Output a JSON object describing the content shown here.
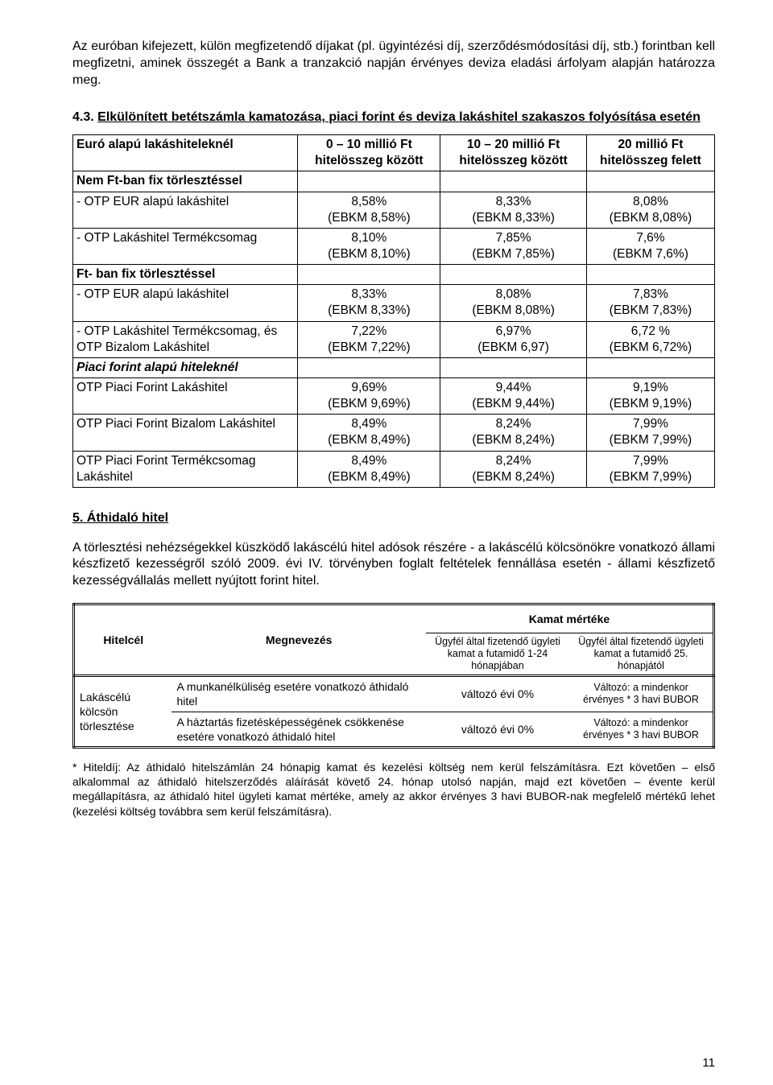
{
  "intro": "Az euróban kifejezett, külön megfizetendő díjakat (pl. ügyintézési díj, szerződésmódosítási díj, stb.) forintban kell megfizetni, aminek összegét a Bank a tranzakció napján érvényes deviza eladási árfolyam alapján határozza meg.",
  "sec43": {
    "num": "4.3.",
    "title": "Elkülönített betétszámla kamatozása, piaci forint és deviza lakáshitel szakaszos folyósítása esetén"
  },
  "table1": {
    "head_row1_c0": "Euró alapú lakáshiteleknél",
    "head_cols": [
      "0 – 10 millió Ft hitelösszeg között",
      "10 – 20 millió Ft hitelösszeg között",
      "20 millió Ft hitelösszeg felett"
    ],
    "rows": [
      {
        "label": "Nem Ft-ban fix törlesztéssel",
        "bold": true,
        "vals": [
          "",
          "",
          ""
        ]
      },
      {
        "label": " - OTP EUR alapú lakáshitel",
        "vals": [
          "8,58%\n(EBKM 8,58%)",
          "8,33%\n(EBKM 8,33%)",
          "8,08%\n(EBKM 8,08%)"
        ]
      },
      {
        "label": " - OTP Lakáshitel Termékcsomag",
        "vals": [
          "8,10%\n(EBKM 8,10%)",
          "7,85%\n(EBKM 7,85%)",
          "7,6%\n(EBKM 7,6%)"
        ]
      },
      {
        "label": "Ft- ban fix törlesztéssel",
        "bold": true,
        "vals": [
          "",
          "",
          ""
        ]
      },
      {
        "label": " - OTP EUR alapú lakáshitel",
        "vals": [
          "8,33%\n(EBKM 8,33%)",
          "8,08%\n(EBKM 8,08%)",
          "7,83%\n(EBKM 7,83%)"
        ]
      },
      {
        "label": "- OTP Lakáshitel Termékcsomag, és OTP Bizalom Lakáshitel",
        "vals": [
          "7,22%\n(EBKM 7,22%)",
          "6,97%\n(EBKM 6,97)",
          "6,72 %\n(EBKM 6,72%)"
        ]
      },
      {
        "label": "Piaci forint alapú hiteleknél",
        "italbold": true,
        "vals": [
          "",
          "",
          ""
        ]
      },
      {
        "label": "OTP Piaci Forint Lakáshitel",
        "vals": [
          "9,69%\n(EBKM 9,69%)",
          "9,44%\n(EBKM 9,44%)",
          "9,19%\n(EBKM 9,19%)"
        ]
      },
      {
        "label": "OTP Piaci Forint Bizalom Lakáshitel",
        "vals": [
          "8,49%\n(EBKM 8,49%)",
          "8,24%\n(EBKM 8,24%)",
          "7,99%\n(EBKM 7,99%)"
        ]
      },
      {
        "label": "OTP Piaci Forint Termékcsomag Lakáshitel",
        "vals": [
          "8,49%\n(EBKM 8,49%)",
          "8,24%\n(EBKM 8,24%)",
          "7,99%\n(EBKM 7,99%)"
        ]
      }
    ]
  },
  "sec5_head": "5. Áthidaló hitel",
  "sec5_body": "A törlesztési nehézségekkel küszködő lakáscélú hitel adósok részére  - a lakáscélú kölcsönökre vonatkozó állami készfizető kezességről szóló 2009. évi IV. törvényben foglalt feltételek fennállása esetén - állami készfizető kezességvállalás mellett nyújtott forint hitel.",
  "table2": {
    "h_hitelcel": "Hitelcél",
    "h_megnev": "Megnevezés",
    "h_kamat": "Kamat mértéke",
    "sub1": "Ügyfél által fizetendő ügyleti kamat a futamidő 1-24 hónapjában",
    "sub2": "Ügyfél által fizetendő ügyleti kamat a futamidő 25. hónapjától",
    "rowspan_label": "Lakáscélú kölcsön törlesztése",
    "r1_megnev": "A munkanélküliség esetére vonatkozó áthidaló hitel",
    "r1_c1": "változó évi     0%",
    "r1_c2": "Változó: a mindenkor érvényes   * 3 havi BUBOR",
    "r2_megnev": "A háztartás fizetésképességének csökkenése esetére vonatkozó áthidaló hitel",
    "r2_c1": "változó évi     0%",
    "r2_c2": "Változó: a mindenkor érvényes   * 3 havi BUBOR"
  },
  "footnote": "* Hiteldíj:  Az áthidaló hitelszámlán 24 hónapig kamat és kezelési költség nem kerül felszámításra. Ezt követően – első alkalommal az áthidaló hitelszerződés aláírását követő 24. hónap utolsó napján, majd ezt követően – évente kerül megállapításra, az áthidaló hitel ügyleti kamat mértéke, amely az akkor érvényes 3 havi BUBOR-nak megfelelő mértékű lehet (kezelési költség továbbra sem kerül felszámításra).",
  "pagenum": "11"
}
